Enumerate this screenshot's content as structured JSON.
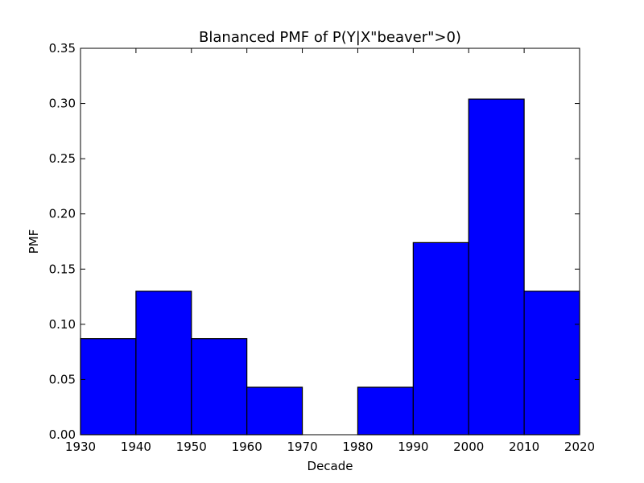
{
  "chart_data": {
    "type": "bar",
    "title": "Blananced PMF of P(Y|X\"beaver\">0)",
    "xlabel": "Decade",
    "ylabel": "PMF",
    "xlim": [
      1930,
      2020
    ],
    "ylim": [
      0,
      0.35
    ],
    "bin_edges": [
      1930,
      1940,
      1950,
      1960,
      1970,
      1980,
      1990,
      2000,
      2010,
      2020
    ],
    "values": [
      0.087,
      0.13,
      0.087,
      0.043,
      0.0,
      0.043,
      0.174,
      0.304,
      0.13
    ],
    "x_ticks": [
      "1930",
      "1940",
      "1950",
      "1960",
      "1970",
      "1980",
      "1990",
      "2000",
      "2010",
      "2020"
    ],
    "y_ticks": [
      "0.00",
      "0.05",
      "0.10",
      "0.15",
      "0.20",
      "0.25",
      "0.30",
      "0.35"
    ],
    "bar_color": "#0000ff",
    "edge_color": "#000000",
    "grid": false
  }
}
